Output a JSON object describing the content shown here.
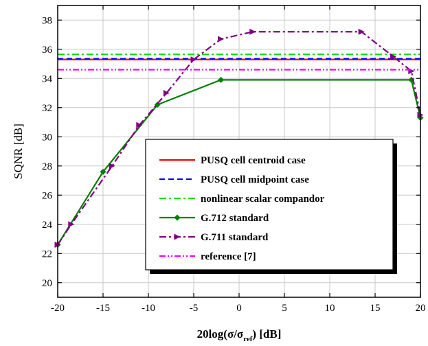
{
  "chart_data": {
    "type": "line",
    "xlabel": "20log(σ/σ",
    "xlabel_sub": "ref",
    "xlabel_suffix": ") [dB]",
    "ylabel": "SQNR [dB]",
    "xlim": [
      -20,
      20
    ],
    "ylim": [
      19,
      39
    ],
    "xticks": [
      "-20",
      "-15",
      "-10",
      "-5",
      "0",
      "5",
      "10",
      "15",
      "20"
    ],
    "yticks": [
      "20",
      "22",
      "24",
      "26",
      "28",
      "30",
      "32",
      "34",
      "36",
      "38"
    ],
    "grid": true,
    "legend_position": "bottom-right",
    "series": [
      {
        "name": "PUSQ cell centroid case",
        "color": "#ff0000",
        "dash": "solid",
        "marker": "none",
        "x": [
          -20,
          -15,
          -10,
          -5,
          0,
          5,
          10,
          15,
          20
        ],
        "y": [
          35.3,
          35.3,
          35.3,
          35.3,
          35.3,
          35.3,
          35.3,
          35.3,
          35.3
        ]
      },
      {
        "name": "PUSQ cell midpoint case",
        "color": "#0000ff",
        "dash": "dashed",
        "marker": "none",
        "x": [
          -20,
          -15,
          -10,
          -5,
          0,
          5,
          10,
          15,
          20
        ],
        "y": [
          35.35,
          35.35,
          35.35,
          35.35,
          35.35,
          35.35,
          35.35,
          35.35,
          35.35
        ]
      },
      {
        "name": "nonlinear scalar compandor",
        "color": "#00dd00",
        "dash": "dashdot",
        "marker": "none",
        "x": [
          -20,
          -15,
          -10,
          -5,
          0,
          5,
          10,
          15,
          20
        ],
        "y": [
          35.65,
          35.65,
          35.65,
          35.65,
          35.65,
          35.65,
          35.65,
          35.65,
          35.65
        ]
      },
      {
        "name": "G.712 standard",
        "color": "#008000",
        "dash": "solid",
        "marker": "diamond",
        "x": [
          -20,
          -15,
          -9,
          -2,
          19,
          20
        ],
        "y": [
          22.6,
          27.6,
          32.2,
          33.9,
          33.9,
          31.3
        ]
      },
      {
        "name": "G.711 standard",
        "color": "#800080",
        "dash": "dashdot",
        "marker": "triangle-right",
        "x": [
          -20,
          -18.5,
          -14,
          -11,
          -8,
          -5,
          -2,
          1.5,
          13.5,
          17,
          19,
          20
        ],
        "y": [
          22.6,
          24.0,
          28.0,
          30.8,
          33.0,
          35.3,
          36.7,
          37.2,
          37.2,
          35.5,
          34.5,
          31.5
        ]
      },
      {
        "name": "reference [7]",
        "color": "#ff00ff",
        "dash": "dashdotdot",
        "marker": "none",
        "x": [
          -20,
          -15,
          -10,
          -5,
          0,
          5,
          10,
          15,
          20
        ],
        "y": [
          34.6,
          34.6,
          34.6,
          34.6,
          34.6,
          34.6,
          34.6,
          34.6,
          34.6
        ]
      }
    ]
  }
}
